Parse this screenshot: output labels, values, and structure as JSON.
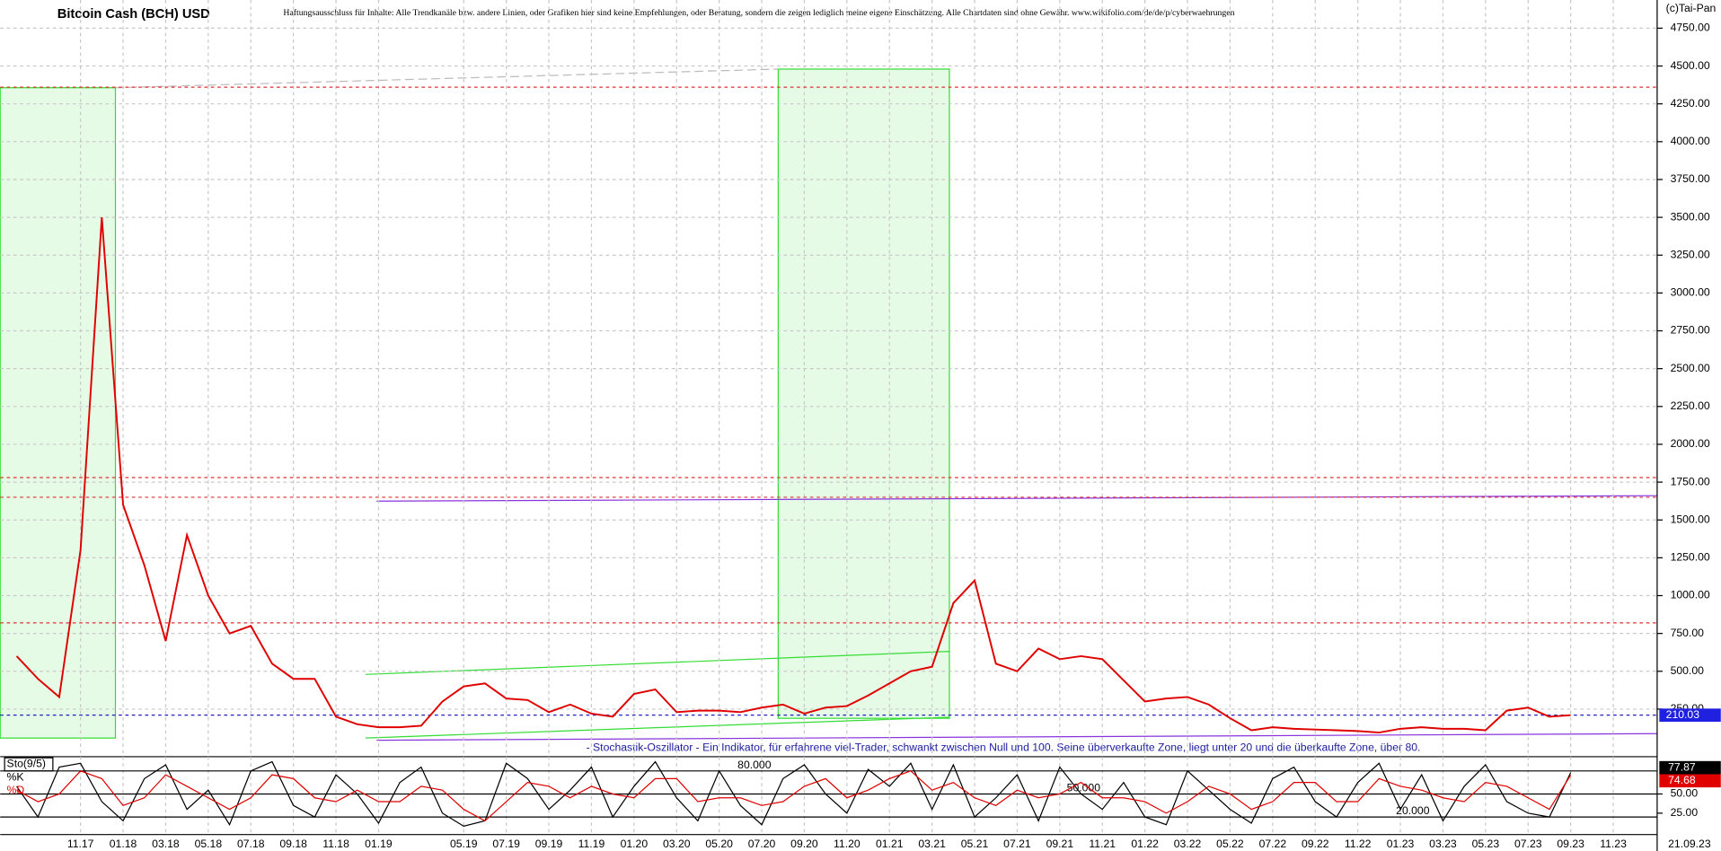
{
  "chart_data": [
    {
      "type": "line",
      "title": "Bitcoin Cash (BCH) USD",
      "subtitle": "Haftungsausschluss für Inhalte: Alle Trendkanäle bzw. andere Linien, oder Grafiken hier sind keine Empfehlungen, oder Beratung, sondern die zeigen lediglich meine eigene Einschätzung. Alle Chartdaten sind ohne Gewähr. www.wikifolio.com/de/de/p/cyberwaehrungen",
      "source": "(c)Tai-Pan",
      "date_label": "21.09.23",
      "categories": [
        null,
        null,
        null,
        "11.17",
        null,
        "01.18",
        null,
        "03.18",
        null,
        "05.18",
        null,
        "07.18",
        null,
        "09.18",
        null,
        "11.18",
        null,
        "01.19",
        null,
        null,
        null,
        "05.19",
        null,
        "07.19",
        null,
        "09.19",
        null,
        "11.19",
        null,
        "01.20",
        null,
        "03.20",
        null,
        "05.20",
        null,
        "07.20",
        null,
        "09.20",
        null,
        "11.20",
        null,
        "01.21",
        null,
        "03.21",
        null,
        "05.21",
        null,
        "07.21",
        null,
        "09.21",
        null,
        "11.21",
        null,
        "01.22",
        null,
        "03.22",
        null,
        "05.22",
        null,
        "07.22",
        null,
        "09.22",
        null,
        "11.22",
        null,
        "01.23",
        null,
        "03.23",
        null,
        "05.23",
        null,
        "07.23",
        null,
        "09.23",
        null,
        "11.23",
        null
      ],
      "series": [
        {
          "name": "BCH",
          "color": "#e00000",
          "values": [
            600,
            450,
            330,
            1300,
            3500,
            1600,
            1200,
            700,
            1400,
            1000,
            750,
            800,
            550,
            450,
            450,
            200,
            150,
            130,
            130,
            140,
            300,
            400,
            420,
            320,
            310,
            230,
            280,
            220,
            200,
            350,
            380,
            230,
            240,
            240,
            230,
            260,
            280,
            220,
            260,
            270,
            340,
            420,
            500,
            530,
            950,
            1100,
            550,
            500,
            650,
            580,
            600,
            580,
            440,
            300,
            320,
            330,
            280,
            190,
            110,
            130,
            120,
            115,
            110,
            105,
            95,
            120,
            130,
            120,
            120,
            110,
            240,
            260,
            200,
            210,
            null,
            null,
            null
          ]
        }
      ],
      "last_price": 210.03,
      "reference_lines": [
        {
          "value": 4360,
          "color": "#e03030"
        },
        {
          "value": 1780,
          "color": "#e03030"
        },
        {
          "value": 1650,
          "color": "#e03030"
        },
        {
          "value": 820,
          "color": "#e03030"
        },
        {
          "value": 210,
          "color": "#2020c0"
        }
      ],
      "ylim": [
        -50,
        4900
      ],
      "yticks": [
        {
          "value": 250,
          "label": "250.00"
        },
        {
          "value": 500,
          "label": "500.00"
        },
        {
          "value": 750,
          "label": "750.00"
        },
        {
          "value": 1000,
          "label": "1000.00"
        },
        {
          "value": 1250,
          "label": "1250.00"
        },
        {
          "value": 1500,
          "label": "1500.00"
        },
        {
          "value": 1750,
          "label": "1750.00"
        },
        {
          "value": 2000,
          "label": "2000.00"
        },
        {
          "value": 2250,
          "label": "2250.00"
        },
        {
          "value": 2500,
          "label": "2500.00"
        },
        {
          "value": 2750,
          "label": "2750.00"
        },
        {
          "value": 3000,
          "label": "3000.00"
        },
        {
          "value": 3250,
          "label": "3250.00"
        },
        {
          "value": 3500,
          "label": "3500.00"
        },
        {
          "value": 3750,
          "label": "3750.00"
        },
        {
          "value": 4000,
          "label": "4000.00"
        },
        {
          "value": 4250,
          "label": "4250.00"
        },
        {
          "value": 4500,
          "label": "4500.00"
        },
        {
          "value": 4750,
          "label": "4750.00"
        }
      ],
      "grid": true
    },
    {
      "type": "line",
      "title": "Sto(9/5)",
      "annotation": "- Stochastik-Oszillator - Ein Indikator, für erfahrene viel-Trader, schwankt zwischen Null und 100. Seine überverkaufte Zone, liegt unter 20 und die überkaufte Zone, über 80.",
      "series": [
        {
          "name": "%K",
          "color": "#000000",
          "values": [
            60,
            20,
            85,
            90,
            40,
            15,
            70,
            88,
            30,
            55,
            10,
            80,
            92,
            35,
            20,
            75,
            50,
            12,
            65,
            85,
            25,
            8,
            15,
            90,
            70,
            30,
            55,
            85,
            20,
            60,
            92,
            45,
            15,
            80,
            35,
            10,
            70,
            88,
            50,
            25,
            82,
            60,
            90,
            30,
            88,
            20,
            45,
            75,
            15,
            85,
            50,
            30,
            65,
            20,
            10,
            80,
            55,
            30,
            12,
            70,
            85,
            40,
            20,
            65,
            90,
            30,
            75,
            15,
            60,
            88,
            40,
            25,
            20,
            77.87,
            null,
            null,
            null
          ]
        },
        {
          "name": "%D",
          "color": "#e00000",
          "values": [
            55,
            40,
            50,
            80,
            70,
            35,
            45,
            75,
            60,
            45,
            30,
            45,
            75,
            70,
            45,
            40,
            55,
            40,
            40,
            60,
            55,
            30,
            15,
            40,
            65,
            60,
            45,
            60,
            50,
            45,
            70,
            70,
            40,
            45,
            45,
            35,
            40,
            60,
            70,
            45,
            55,
            70,
            80,
            55,
            65,
            45,
            35,
            55,
            45,
            50,
            65,
            45,
            45,
            40,
            25,
            40,
            60,
            50,
            30,
            40,
            65,
            65,
            40,
            40,
            70,
            60,
            55,
            45,
            40,
            65,
            60,
            45,
            30,
            74.68,
            null,
            null,
            null
          ]
        }
      ],
      "levels": [
        {
          "value": 80,
          "label": "80.000"
        },
        {
          "value": 50,
          "label": "50.000"
        },
        {
          "value": 20,
          "label": "20.000"
        }
      ],
      "ylim": [
        0,
        100
      ],
      "yticks": [
        {
          "value": 25,
          "label": "25.00"
        },
        {
          "value": 50,
          "label": "50.00"
        }
      ]
    }
  ]
}
